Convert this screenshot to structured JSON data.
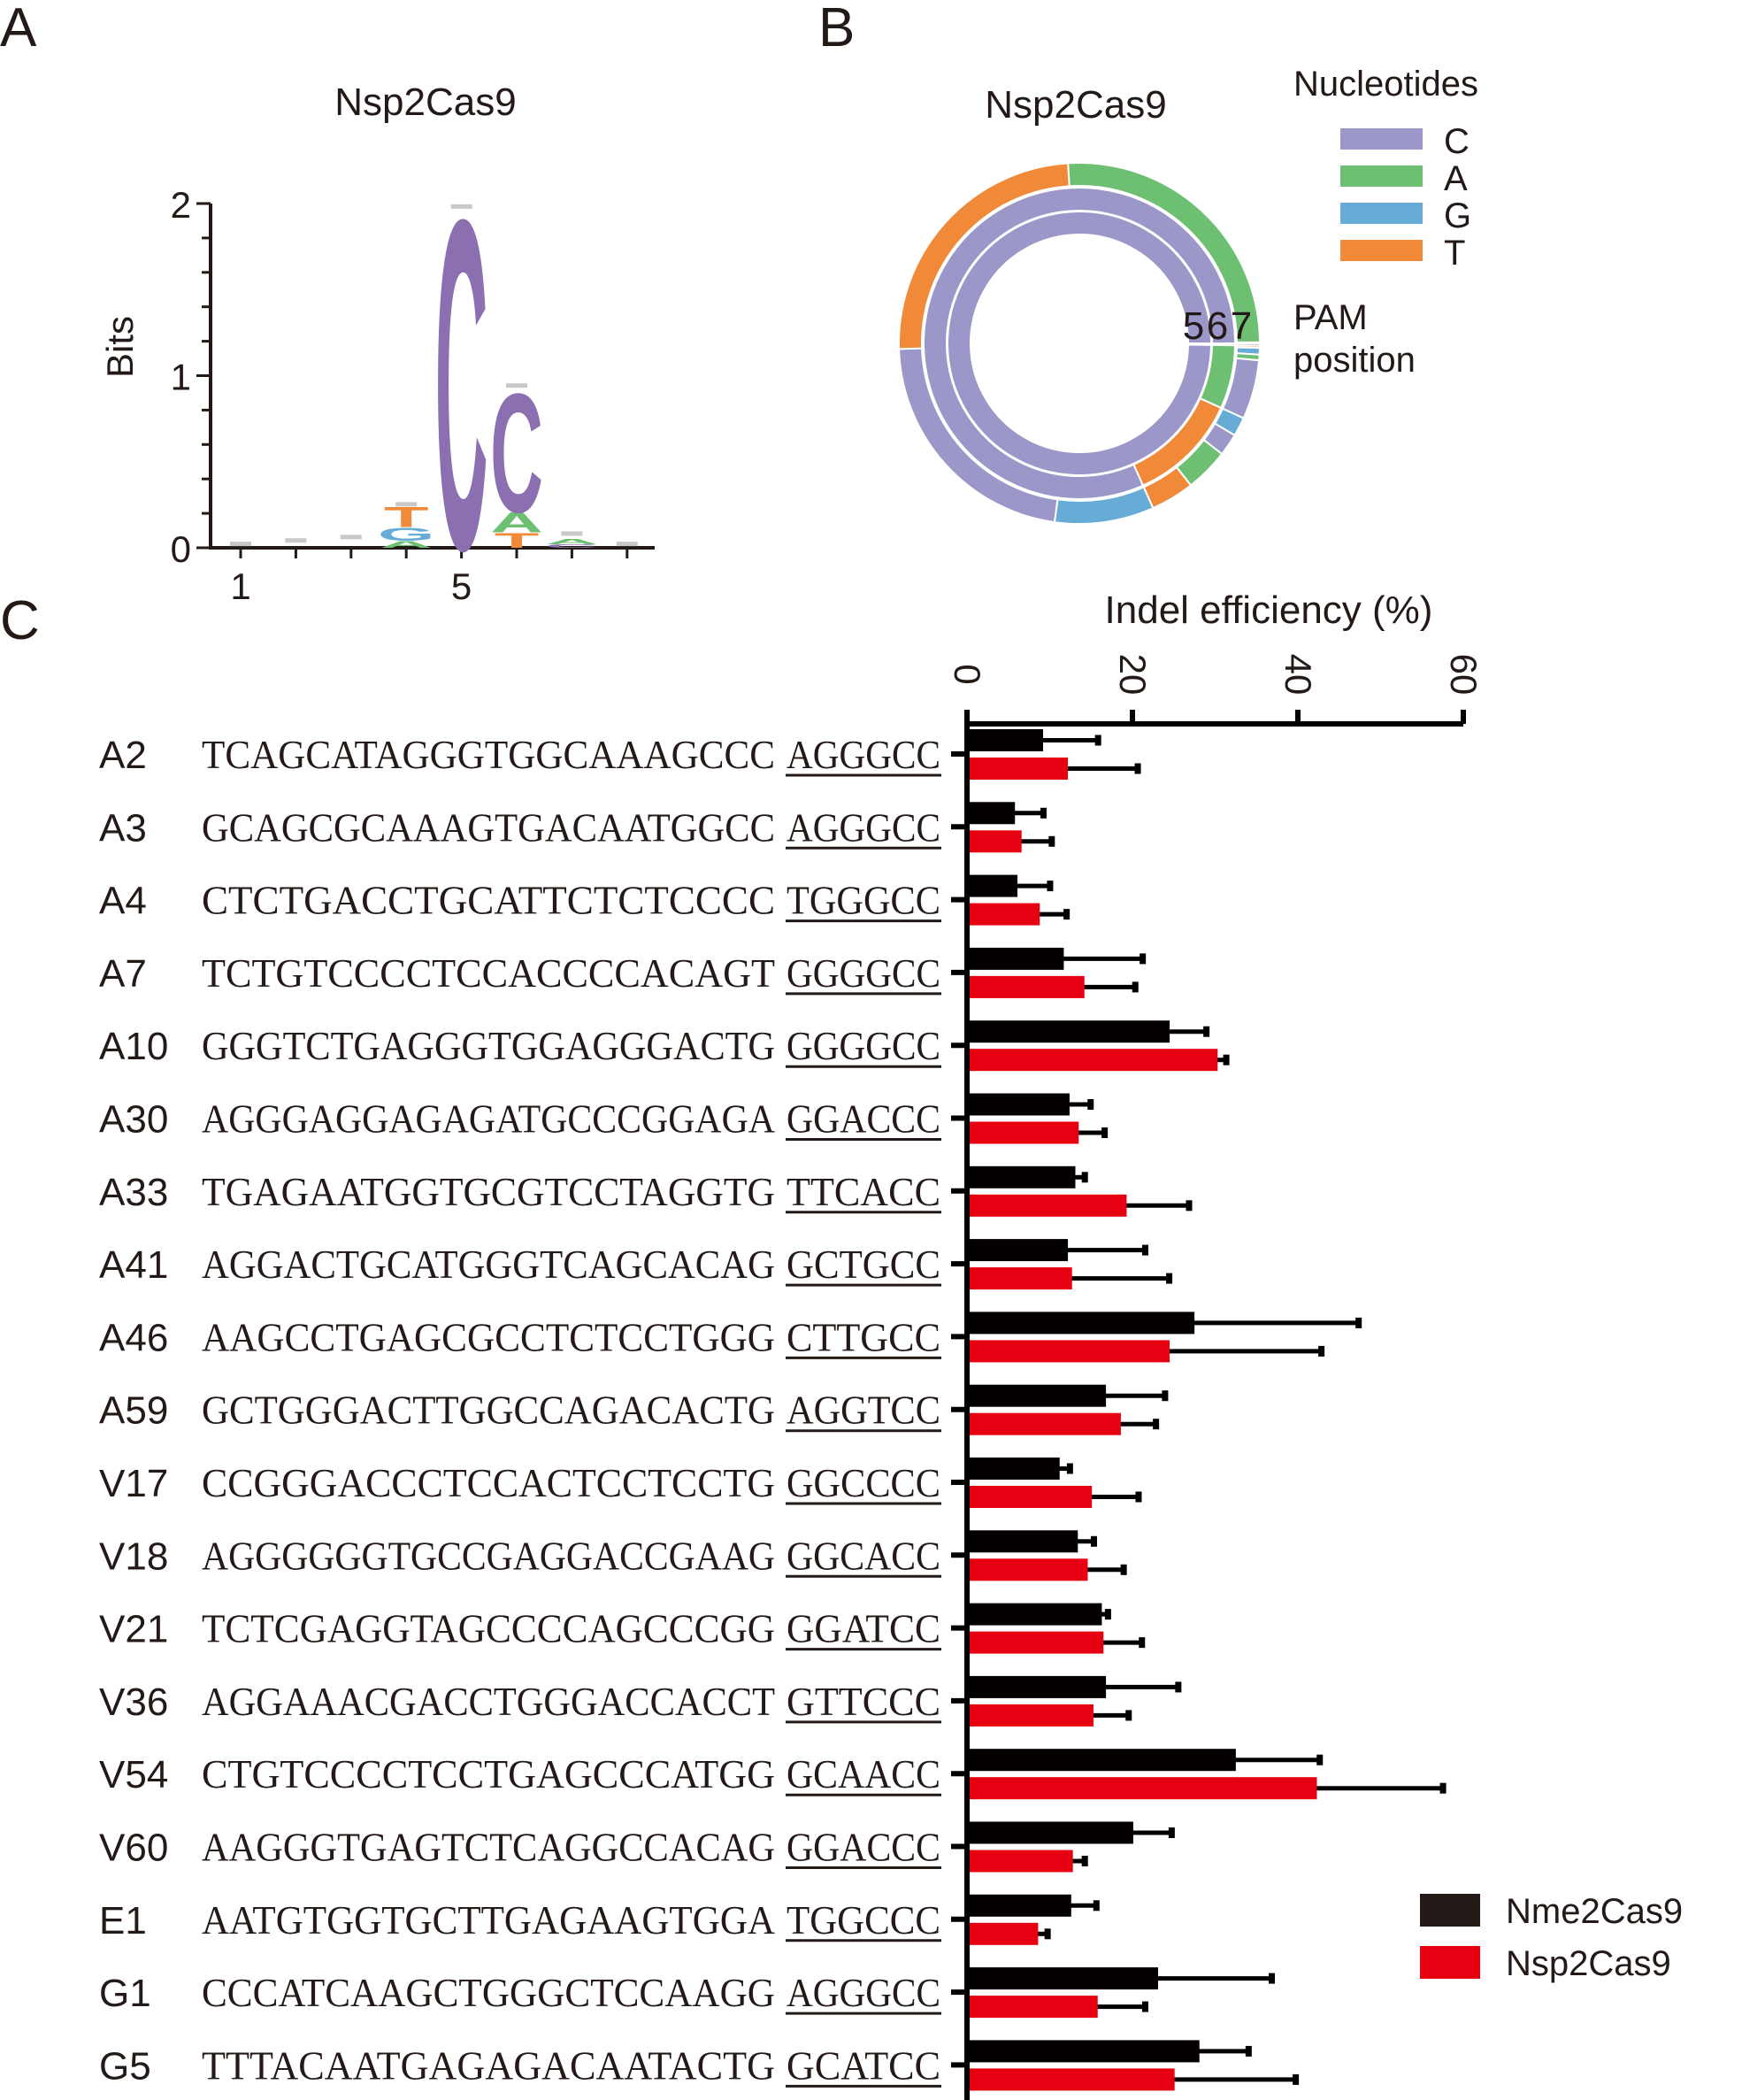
{
  "panel_letters": {
    "a": "A",
    "b": "B",
    "c": "C"
  },
  "colors": {
    "C": "#9b97c9",
    "A": "#6dbf71",
    "G": "#66acd6",
    "T": "#f08a38",
    "logo_C": "#8b6fb0",
    "nme2": "#050000",
    "nsp2": "#e60012",
    "text": "#231916",
    "cap": "#c8c8c8"
  },
  "chart_data": [
    {
      "id": "panel-a",
      "type": "sequence-logo",
      "title": "Nsp2Cas9",
      "ylabel": "Bits",
      "ylim": [
        0,
        2
      ],
      "yticks": [
        "0",
        "1",
        "2"
      ],
      "xtick_labels": [
        {
          "position": 1,
          "label": "1"
        },
        {
          "position": 5,
          "label": "5"
        }
      ],
      "positions": [
        {
          "pos": 1,
          "stack": [],
          "cap": 0.02
        },
        {
          "pos": 2,
          "stack": [],
          "cap": 0.04
        },
        {
          "pos": 3,
          "stack": [],
          "cap": 0.06
        },
        {
          "pos": 4,
          "stack": [
            {
              "base": "A",
              "bits": 0.04
            },
            {
              "base": "G",
              "bits": 0.08
            },
            {
              "base": "T",
              "bits": 0.12
            }
          ],
          "cap": 0.25
        },
        {
          "pos": 5,
          "stack": [
            {
              "base": "C",
              "bits": 1.97
            }
          ],
          "cap": 1.98
        },
        {
          "pos": 6,
          "stack": [
            {
              "base": "T",
              "bits": 0.09
            },
            {
              "base": "A",
              "bits": 0.12
            },
            {
              "base": "C",
              "bits": 0.71
            }
          ],
          "cap": 0.94
        },
        {
          "pos": 7,
          "stack": [
            {
              "base": "C",
              "bits": 0.02
            },
            {
              "base": "A",
              "bits": 0.03
            }
          ],
          "cap": 0.08
        },
        {
          "pos": 8,
          "stack": [],
          "cap": 0.02
        }
      ]
    },
    {
      "id": "panel-b",
      "type": "sunburst",
      "title": "Nsp2Cas9",
      "ring_labels": [
        "5",
        "6",
        "7"
      ],
      "side_label": [
        "PAM",
        "position"
      ],
      "legend_title": "Nucleotides",
      "legend": [
        "C",
        "A",
        "G",
        "T"
      ],
      "rings_percent": [
        [
          {
            "base": "T",
            "pct": 0.2
          },
          {
            "base": "C",
            "pct": 99.8
          }
        ],
        [
          {
            "base": "C",
            "pct": 0.2
          },
          {
            "base": "A",
            "pct": 6.6
          },
          {
            "base": "T",
            "pct": 11.5
          },
          {
            "base": "C",
            "pct": 81.7
          }
        ],
        [
          {
            "base": "C",
            "pct": 0.2
          },
          {
            "base": "T",
            "pct": 0.2
          },
          {
            "base": "G",
            "pct": 0.6
          },
          {
            "base": "A",
            "pct": 0.5
          },
          {
            "base": "C",
            "pct": 5.3
          },
          {
            "base": "G",
            "pct": 1.7
          },
          {
            "base": "C",
            "pct": 2.0
          },
          {
            "base": "A",
            "pct": 3.9
          },
          {
            "base": "T",
            "pct": 3.9
          },
          {
            "base": "G",
            "pct": 8.9
          },
          {
            "base": "C",
            "pct": 22.3
          },
          {
            "base": "T",
            "pct": 24.5
          },
          {
            "base": "A",
            "pct": 25.9
          }
        ]
      ]
    },
    {
      "id": "panel-c",
      "type": "bar",
      "orientation": "horizontal",
      "xlabel": "Indel efficiency (%)",
      "xlim": [
        0,
        60
      ],
      "xticks": [
        "0",
        "20",
        "40",
        "60"
      ],
      "categories": [
        "A2",
        "A3",
        "A4",
        "A7",
        "A10",
        "A30",
        "A33",
        "A41",
        "A46",
        "A59",
        "V17",
        "V18",
        "V21",
        "V36",
        "V54",
        "V60",
        "E1",
        "G1",
        "G5"
      ],
      "sequences": [
        {
          "protospacer": "TCAGCATAGGGTGGCAAAGCCC",
          "pam": "AGGGCC"
        },
        {
          "protospacer": "GCAGCGCAAAGTGACAATGGCC",
          "pam": "AGGGCC"
        },
        {
          "protospacer": "CTCTGACCTGCATTCTCTCCCC",
          "pam": "TGGGCC"
        },
        {
          "protospacer": "TCTGTCCCCTCCACCCCACAGT",
          "pam": "GGGGCC"
        },
        {
          "protospacer": "GGGTCTGAGGGTGGAGGGACTG",
          "pam": "GGGGCC"
        },
        {
          "protospacer": "AGGGAGGAGAGATGCCCGGAGA",
          "pam": "GGACCC"
        },
        {
          "protospacer": "TGAGAATGGTGCGTCCTAGGTG",
          "pam": "TTCACC"
        },
        {
          "protospacer": "AGGACTGCATGGGTCAGCACAG",
          "pam": "GCTGCC"
        },
        {
          "protospacer": "AAGCCTGAGCGCCTCTCCTGGG",
          "pam": "CTTGCC"
        },
        {
          "protospacer": "GCTGGGACTTGGCCAGACACTG",
          "pam": "AGGTCC"
        },
        {
          "protospacer": "CCGGGACCCTCCACTCCTCCTG",
          "pam": "GGCCCC"
        },
        {
          "protospacer": "AGGGGGGTGCCGAGGACCGAAG",
          "pam": "GGCACC"
        },
        {
          "protospacer": "TCTCGAGGTAGCCCCAGCCCGG",
          "pam": "GGATCC"
        },
        {
          "protospacer": "AGGAAACGACCTGGGACCACCT",
          "pam": "GTTCCC"
        },
        {
          "protospacer": "CTGTCCCCTCCTGAGCCCATGG",
          "pam": "GCAACC"
        },
        {
          "protospacer": "AAGGGTGAGTCTCAGGCCACAG",
          "pam": "GGACCC"
        },
        {
          "protospacer": "AATGTGGTGCTTGAGAAGTGGA",
          "pam": "TGGCCC"
        },
        {
          "protospacer": "CCCATCAAGCTGGGCTCCAAGG",
          "pam": "AGGGCC"
        },
        {
          "protospacer": "TTTACAATGAGAGACAATACTG",
          "pam": "GCATCC"
        }
      ],
      "series": [
        {
          "name": "Nme2Cas9",
          "values": [
            9.2,
            5.8,
            6.1,
            11.7,
            24.5,
            12.4,
            13.1,
            12.2,
            27.5,
            16.8,
            11.2,
            13.4,
            16.3,
            16.8,
            32.5,
            20.1,
            12.6,
            23.1,
            28.1
          ],
          "error_top": [
            15.9,
            9.3,
            10.1,
            21.3,
            29.0,
            15.0,
            14.3,
            21.6,
            47.4,
            24.0,
            12.5,
            15.4,
            17.1,
            25.6,
            42.7,
            24.8,
            15.7,
            36.9,
            34.1
          ]
        },
        {
          "name": "Nsp2Cas9",
          "values": [
            12.2,
            6.6,
            8.8,
            14.2,
            30.3,
            13.5,
            19.3,
            12.7,
            24.5,
            18.6,
            15.1,
            14.6,
            16.5,
            15.3,
            42.3,
            12.8,
            8.6,
            15.8,
            25.1
          ],
          "error_top": [
            20.7,
            10.3,
            12.1,
            20.4,
            31.4,
            16.7,
            26.9,
            24.5,
            42.9,
            22.9,
            20.8,
            19.0,
            21.2,
            19.6,
            57.6,
            14.3,
            9.8,
            21.6,
            39.8
          ]
        }
      ],
      "legend": [
        "Nme2Cas9",
        "Nsp2Cas9"
      ],
      "legend_placement": "bottom-right"
    }
  ]
}
